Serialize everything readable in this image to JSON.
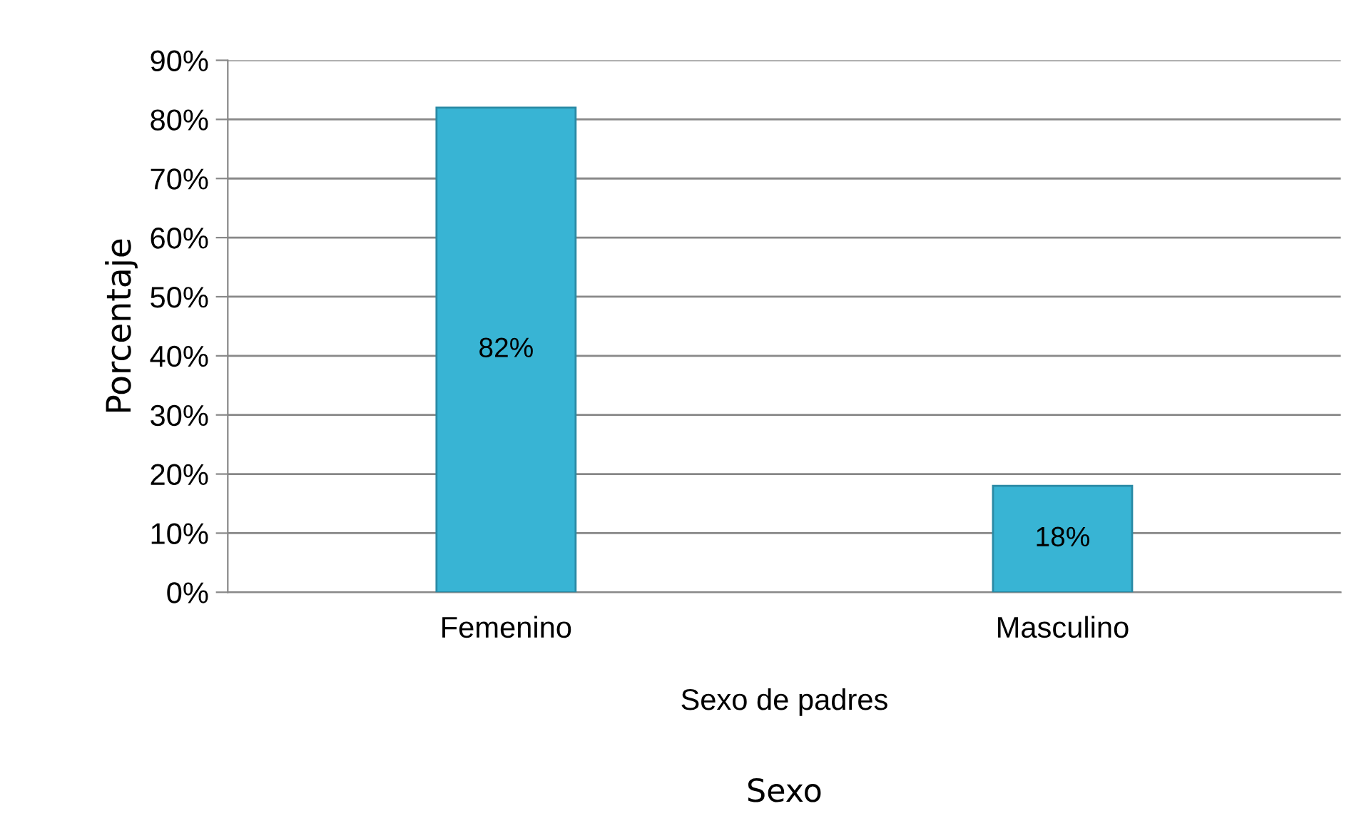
{
  "chart_data": {
    "type": "bar",
    "categories": [
      "Femenino",
      "Masculino"
    ],
    "values": [
      82,
      18
    ],
    "color": "#38b4d4",
    "value_labels": [
      "82%",
      "18%"
    ],
    "ylim": [
      0,
      90
    ],
    "yticks": [
      {
        "value": 0,
        "label": "0%"
      },
      {
        "value": 10,
        "label": "10%"
      },
      {
        "value": 20,
        "label": "20%"
      },
      {
        "value": 30,
        "label": "30%"
      },
      {
        "value": 40,
        "label": "40%"
      },
      {
        "value": 50,
        "label": "50%"
      },
      {
        "value": 60,
        "label": "60%"
      },
      {
        "value": 70,
        "label": "70%"
      },
      {
        "value": 80,
        "label": "80%"
      },
      {
        "value": 90,
        "label": "90%"
      }
    ],
    "ylabel": "Porcentaje",
    "xlabel": "Sexo",
    "annotations": [
      "Sexo de padres"
    ],
    "grid": "y"
  }
}
